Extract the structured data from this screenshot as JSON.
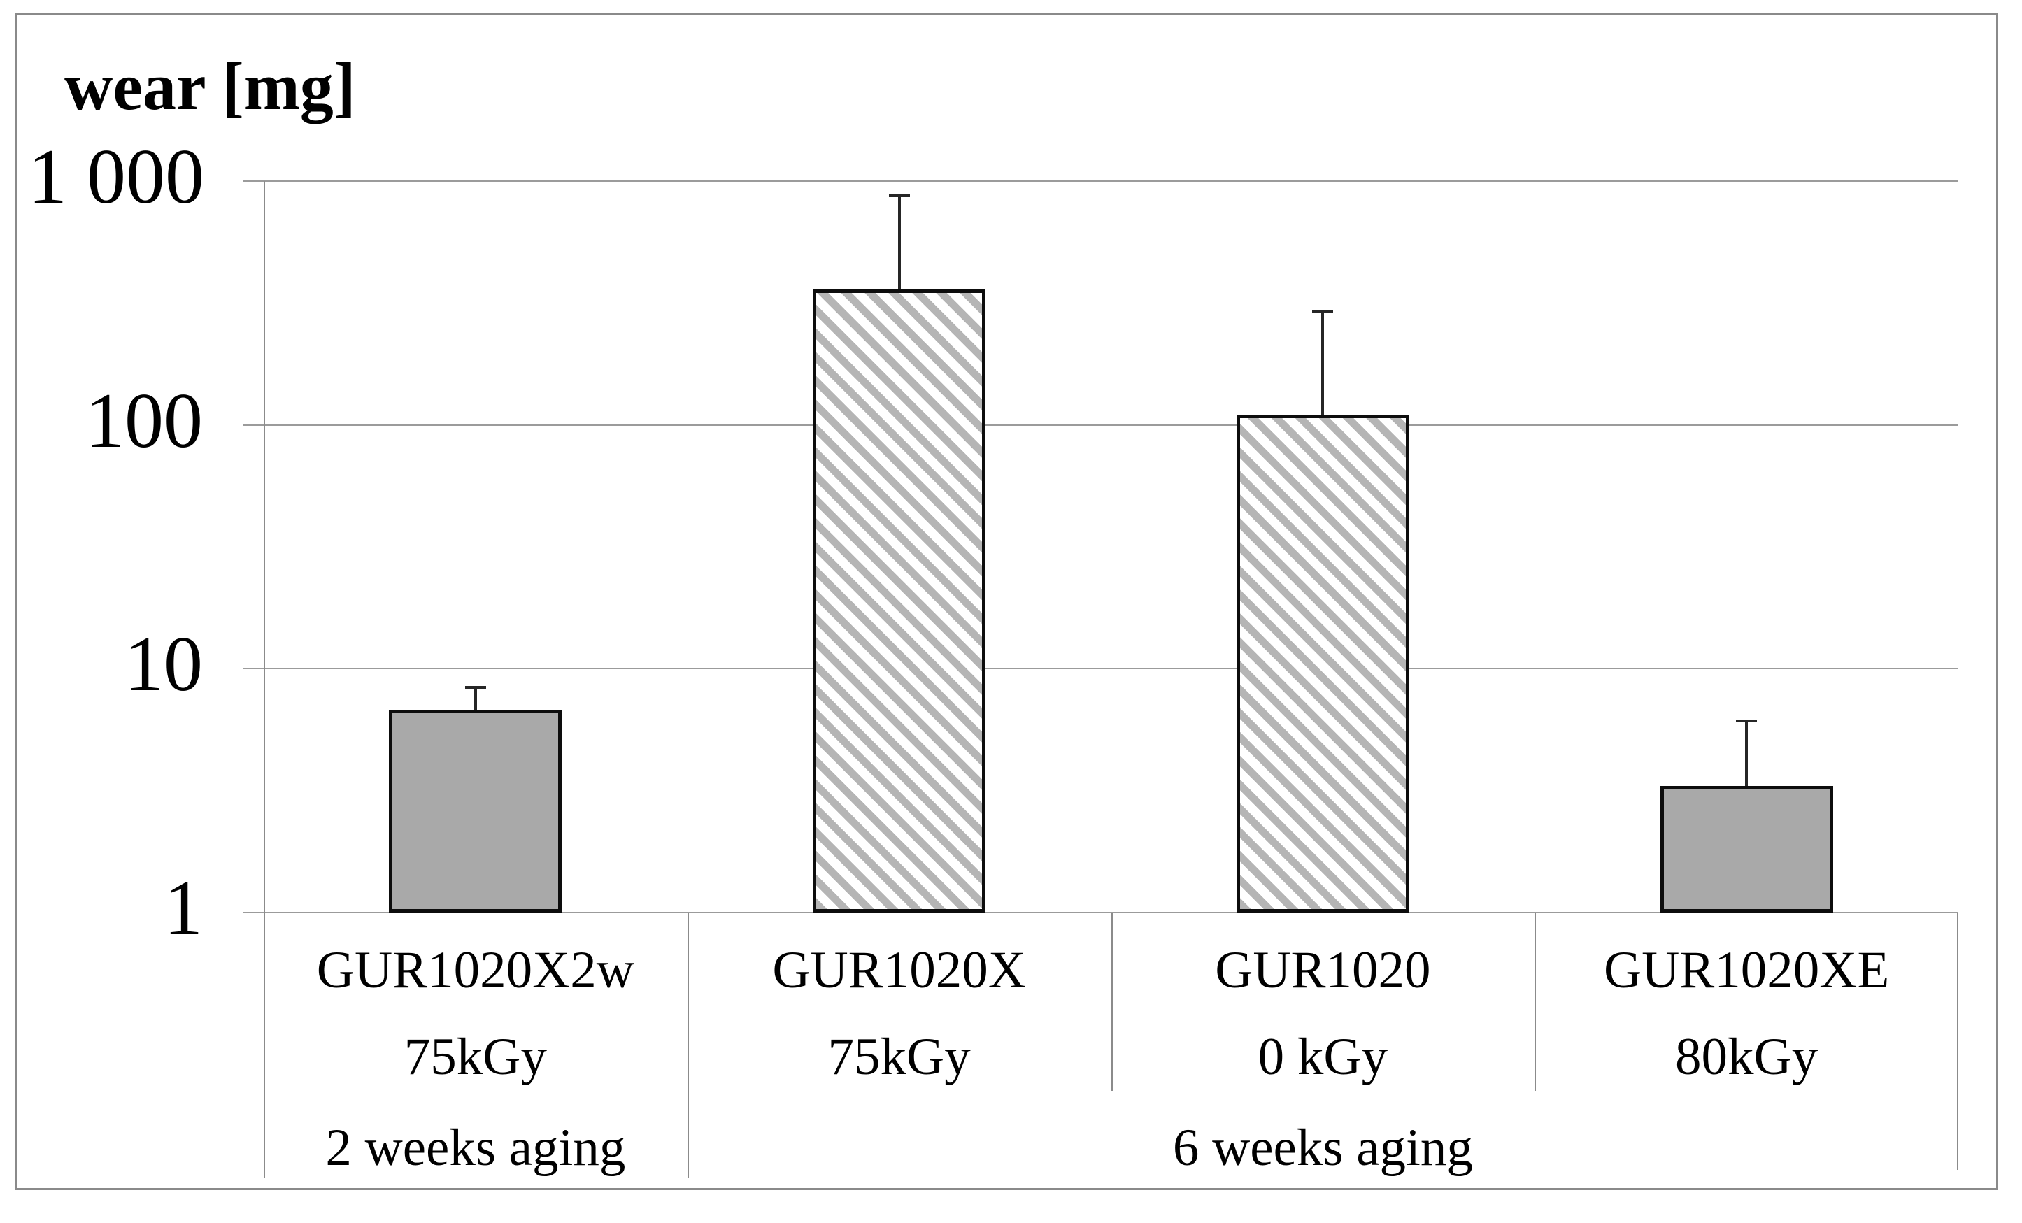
{
  "title": "wear [mg]",
  "y_axis": {
    "tick_labels": [
      "1 000",
      "100",
      "10",
      "1"
    ],
    "tick_values": [
      1000,
      100,
      10,
      1
    ]
  },
  "chart_data": {
    "type": "bar",
    "title": "wear [mg]",
    "ylabel": "wear [mg]",
    "yscale": "log",
    "ylim": [
      1,
      1000
    ],
    "gridlines": [
      1000,
      100,
      10,
      1
    ],
    "legend": "none",
    "categories": [
      {
        "material": "GUR1020X2w",
        "dose": "75kGy"
      },
      {
        "material": "GUR1020X",
        "dose": "75kGy"
      },
      {
        "material": "GUR1020",
        "dose": "0 kGy"
      },
      {
        "material": "GUR1020XE",
        "dose": "80kGy"
      }
    ],
    "values": [
      6.8,
      360,
      110,
      3.3
    ],
    "error_bar_tops": [
      8.4,
      870,
      290,
      6.1
    ],
    "bar_styles": [
      "solid-gray",
      "hatched",
      "hatched",
      "solid-gray"
    ],
    "aging_groups": [
      {
        "label": "2 weeks aging",
        "start": 0,
        "end": 1
      },
      {
        "label": "6 weeks aging",
        "start": 1,
        "end": 4
      }
    ]
  },
  "colors": {
    "solid_bar_fill": "#a9a9a9",
    "hatch_stripe": "#b5b5b5",
    "bar_border": "#0d0d0d",
    "gridline": "#9b9b9b",
    "axis_line": "#8b8b8b",
    "error_bar": "#262626",
    "figure_border": "#8a8a8a",
    "background": "#ffffff"
  }
}
